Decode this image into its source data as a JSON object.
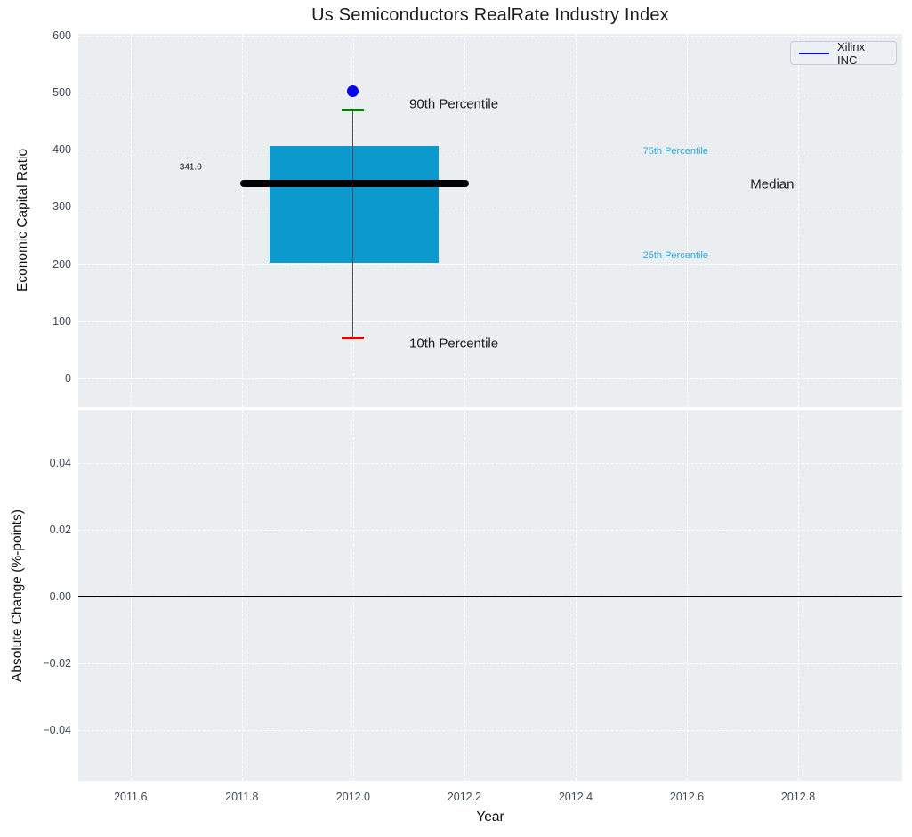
{
  "figure": {
    "title": "Us Semiconductors RealRate Industry Index",
    "legend": {
      "label": "Xilinx INC",
      "line_color": "#0404ee"
    },
    "top": {
      "ylabel": "Economic Capital Ratio"
    },
    "bottom": {
      "ylabel": "Absolute Change (%-points)",
      "xlabel": "Year"
    }
  },
  "chart_data": [
    {
      "type": "box",
      "title": "Us Semiconductors RealRate Industry Index",
      "ylabel": "Economic Capital Ratio",
      "xlabel": "",
      "xlim": [
        2011.506,
        2012.987
      ],
      "ylim": [
        -50,
        603
      ],
      "grid": true,
      "legend_position": "upper right",
      "ytick_values": [
        0,
        100,
        200,
        300,
        400,
        500,
        600
      ],
      "ytick_labels": [
        "0",
        "100",
        "200",
        "300",
        "400",
        "500",
        "600"
      ],
      "box": {
        "x": 2012.0,
        "box_left": 2011.85,
        "box_right": 2012.154,
        "p10": 71,
        "p25": 203,
        "median": 341,
        "p75": 407,
        "p90": 469,
        "cap_halfwidth": 0.02,
        "median_line_left": 2011.797,
        "median_line_right": 2012.208
      },
      "outlier": {
        "name": "Xilinx INC",
        "x": 2012.0,
        "y": 503,
        "color": "#0404ee"
      },
      "colors": {
        "box_fill": "#0b99ce",
        "median_line": "#000000",
        "whisker": "#4f4f4f",
        "cap_top": "#008000",
        "cap_bottom": "#e60000"
      },
      "annotations": [
        {
          "text": "90th Percentile",
          "x": 2012.101,
          "y": 480,
          "color": "#1a1a1a",
          "size": 15
        },
        {
          "text": "75th Percentile",
          "x": 2012.521,
          "y": 397,
          "color": "#2ba7dc",
          "size": 11
        },
        {
          "text": "Median",
          "x": 2012.714,
          "y": 340,
          "color": "#1a1a1a",
          "size": 15
        },
        {
          "text": "25th Percentile",
          "x": 2012.521,
          "y": 215,
          "color": "#2ba7dc",
          "size": 11
        },
        {
          "text": "10th Percentile",
          "x": 2012.101,
          "y": 61,
          "color": "#1a1a1a",
          "size": 15
        },
        {
          "text": "341.0",
          "x": 2011.688,
          "y": 369,
          "color": "#111111",
          "size": 10
        }
      ]
    },
    {
      "type": "line",
      "ylabel": "Absolute Change (%-points)",
      "xlabel": "Year",
      "xlim": [
        2011.506,
        2012.987
      ],
      "ylim": [
        -0.0552,
        0.0557
      ],
      "grid": true,
      "zero_line_y": 0.0,
      "series": [],
      "ytick_values": [
        0.04,
        0.02,
        0.0,
        -0.02,
        -0.04
      ],
      "ytick_labels": [
        "0.04",
        "0.02",
        "0.00",
        "−0.02",
        "−0.04"
      ],
      "xtick_values": [
        2011.6,
        2011.8,
        2012.0,
        2012.2,
        2012.4,
        2012.6,
        2012.8
      ],
      "xtick_labels": [
        "2011.6",
        "2011.8",
        "2012.0",
        "2012.2",
        "2012.4",
        "2012.6",
        "2012.8"
      ]
    }
  ]
}
